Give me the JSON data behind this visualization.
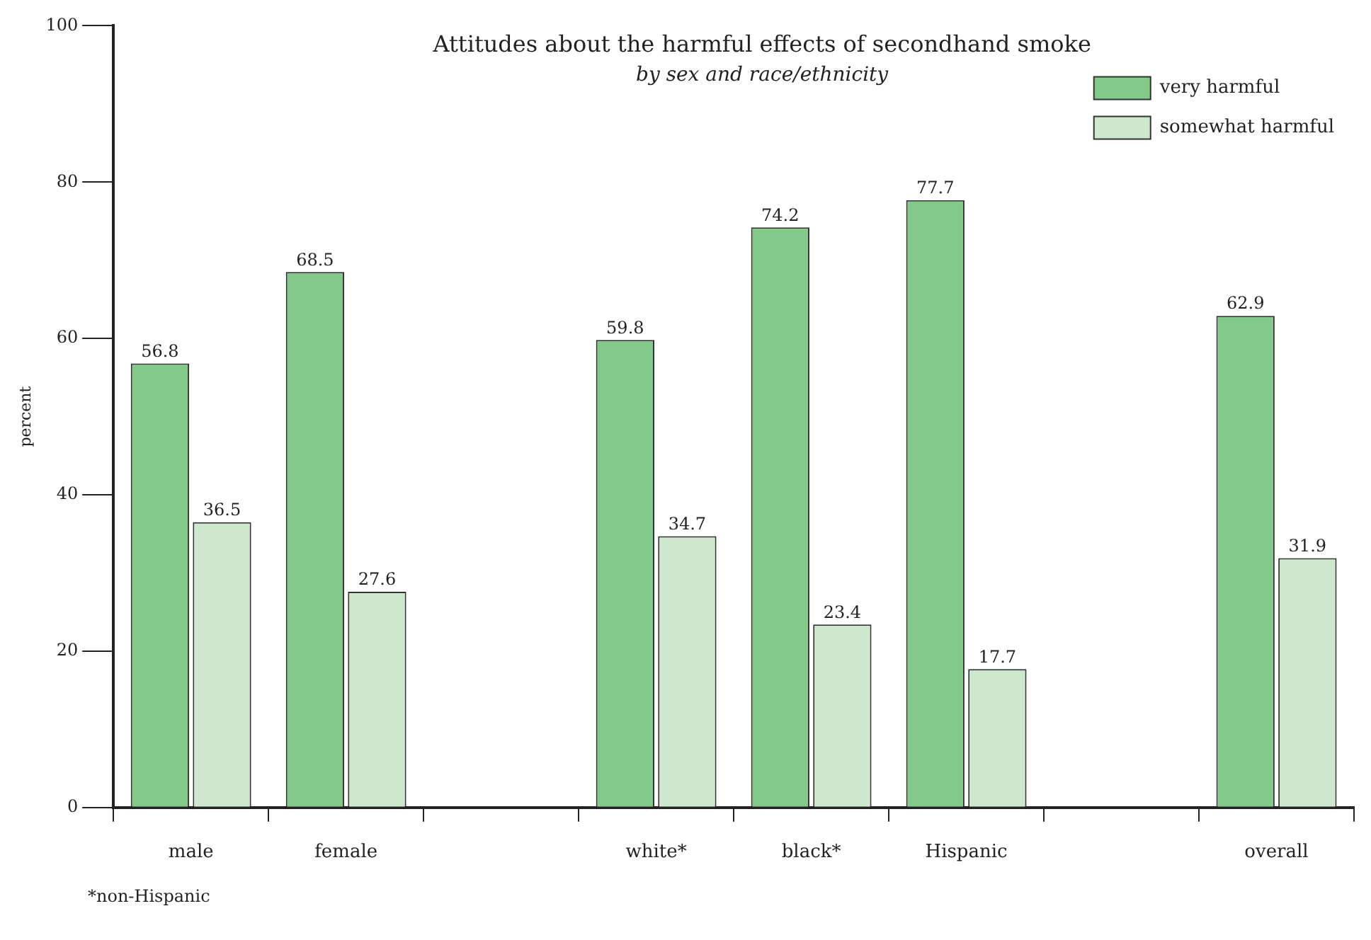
{
  "chart_data": {
    "type": "bar",
    "title": "Attitudes about the harmful effects of secondhand smoke",
    "subtitle": "by sex and race/ethnicity",
    "ylabel": "percent",
    "categories": [
      "male",
      "female",
      null,
      "white*",
      "black*",
      "Hispanic",
      null,
      "overall"
    ],
    "series": [
      {
        "name": "very harmful",
        "color": "#82c98a",
        "values": [
          56.8,
          68.5,
          null,
          59.8,
          74.2,
          77.7,
          null,
          62.9
        ]
      },
      {
        "name": "somewhat harmful",
        "color": "#cde8cc",
        "values": [
          36.5,
          27.6,
          null,
          34.7,
          23.4,
          17.7,
          null,
          31.9
        ]
      }
    ],
    "ylim": [
      0,
      100
    ],
    "yticks": [
      0,
      20,
      40,
      60,
      80,
      100
    ],
    "grid": false,
    "legend": "top right",
    "data_labels": true,
    "annotations": [
      "*non-Hispanic"
    ]
  }
}
